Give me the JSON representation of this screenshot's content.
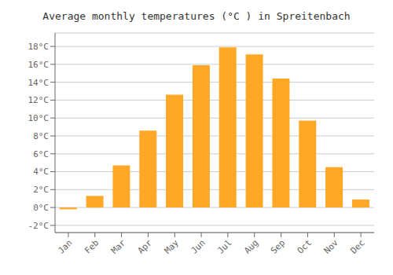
{
  "chart_data": {
    "type": "bar",
    "title": "Average monthly temperatures (°C ) in Spreitenbach",
    "categories": [
      "Jan",
      "Feb",
      "Mar",
      "Apr",
      "May",
      "Jun",
      "Jul",
      "Aug",
      "Sep",
      "Oct",
      "Nov",
      "Dec"
    ],
    "values": [
      -0.2,
      1.3,
      4.7,
      8.6,
      12.6,
      15.9,
      17.9,
      17.1,
      14.4,
      9.7,
      4.5,
      0.9
    ],
    "color": "#FFA726",
    "ylim": [
      -2.8,
      19.5
    ],
    "yticks": [
      {
        "value": -2,
        "label": "-2°C"
      },
      {
        "value": 0,
        "label": "0°C"
      },
      {
        "value": 2,
        "label": "2°C"
      },
      {
        "value": 4,
        "label": "4°C"
      },
      {
        "value": 6,
        "label": "6°C"
      },
      {
        "value": 8,
        "label": "8°C"
      },
      {
        "value": 10,
        "label": "10°C"
      },
      {
        "value": 12,
        "label": "12°C"
      },
      {
        "value": 14,
        "label": "14°C"
      },
      {
        "value": 16,
        "label": "16°C"
      },
      {
        "value": 18,
        "label": "18°C"
      }
    ],
    "grid": true
  }
}
